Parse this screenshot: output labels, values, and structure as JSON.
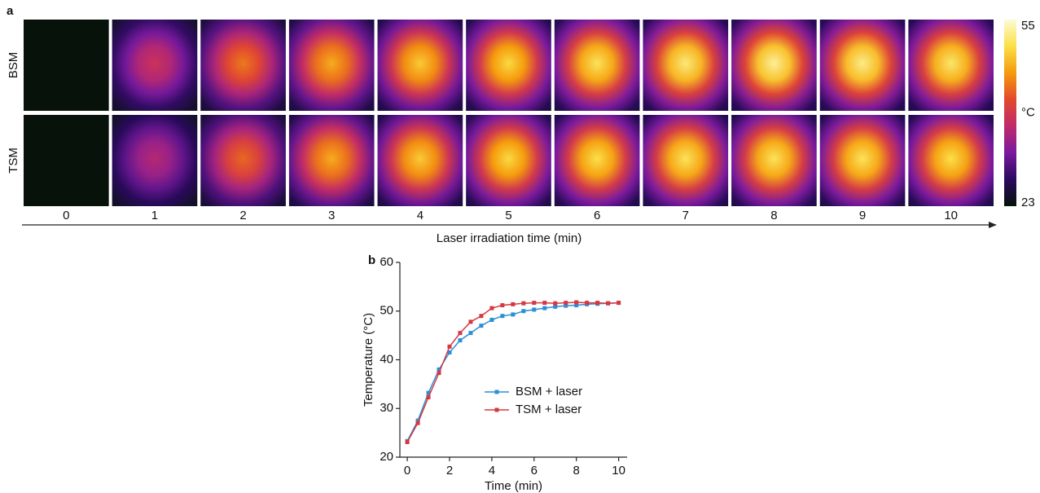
{
  "chart_data": [
    {
      "type": "thermal-grid",
      "label": "a",
      "x": [
        0,
        1,
        2,
        3,
        4,
        5,
        6,
        7,
        8,
        9,
        10
      ],
      "xlabel": "Laser irradiation time (min)",
      "series": [
        {
          "name": "BSM",
          "values": [
            23,
            38,
            44,
            47,
            49,
            50,
            51,
            52,
            53,
            52.5,
            51.5
          ]
        },
        {
          "name": "TSM",
          "values": [
            23,
            36,
            43,
            47,
            49,
            50,
            50.5,
            51,
            51,
            51,
            50.5
          ]
        }
      ],
      "clim": [
        23,
        55
      ],
      "cticks": [
        23,
        55
      ],
      "clabel": "°C",
      "colormap": [
        "#07120a",
        "#2a0a5e",
        "#7a1a9e",
        "#c02a6a",
        "#e2482e",
        "#f59a0c",
        "#fbe047",
        "#fcfbd6"
      ]
    },
    {
      "type": "line",
      "label": "b",
      "x": [
        0,
        0.5,
        1,
        1.5,
        2,
        2.5,
        3,
        3.5,
        4,
        4.5,
        5,
        5.5,
        6,
        6.5,
        7,
        7.5,
        8,
        8.5,
        9,
        9.5,
        10
      ],
      "xlabel": "Time (min)",
      "ylabel": "Temperature (°C)",
      "xlim": [
        -0.35,
        10.4
      ],
      "ylim": [
        20,
        60
      ],
      "xticks": [
        0,
        2,
        4,
        6,
        8,
        10
      ],
      "yticks": [
        20,
        30,
        40,
        50,
        60
      ],
      "legend": "lower right",
      "series": [
        {
          "name": "BSM + laser",
          "color": "#2b8fd6",
          "values": [
            23.3,
            27.5,
            33.2,
            38.0,
            41.5,
            44.0,
            45.5,
            47.0,
            48.2,
            49.0,
            49.3,
            50.0,
            50.3,
            50.6,
            50.9,
            51.1,
            51.2,
            51.4,
            51.5,
            51.6,
            51.7
          ]
        },
        {
          "name": "TSM + laser",
          "color": "#d6383f",
          "values": [
            23.1,
            27.0,
            32.3,
            37.3,
            42.7,
            45.5,
            47.8,
            49.0,
            50.6,
            51.2,
            51.4,
            51.6,
            51.7,
            51.7,
            51.6,
            51.7,
            51.8,
            51.7,
            51.7,
            51.6,
            51.7
          ]
        }
      ]
    }
  ]
}
